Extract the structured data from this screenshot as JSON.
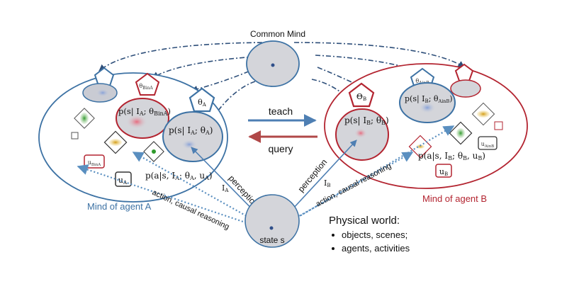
{
  "common_mind": {
    "title": "Common Mind"
  },
  "arrows": {
    "teach": "teach",
    "query": "query"
  },
  "agent_a": {
    "label": "Mind of agent A",
    "theta": "θ",
    "theta_sub": "A",
    "theta_bina": "θ",
    "theta_bina_sub": "BinA",
    "u": "u",
    "u_sub": "A",
    "u_bina": "u",
    "u_bina_sub": "BinA",
    "p_s_bina": "p(s| I",
    "p_s_bina_mid": "A",
    "p_s_bina_end": "; θ",
    "p_s_bina_sub": "BinA",
    "p_s": "p(s| I",
    "p_s_mid": "A",
    "p_s_end": "; θ",
    "p_s_sub": "A",
    "p_a": "p(a|s, I",
    "p_a_mid": "A",
    "p_a_end": "; θ",
    "p_a_sub": "A",
    "p_a_tail": ", u",
    "p_a_tail_sub": "A",
    "perception": "perception",
    "action": "action, causal reasoning",
    "I": "I",
    "I_sub": "A"
  },
  "agent_b": {
    "label": "Mind of agent B",
    "theta": "Θ",
    "theta_sub": "B",
    "theta_ainb": "θ",
    "theta_ainb_sub": "AinB",
    "u": "u",
    "u_sub": "B",
    "u_ainb": "u",
    "u_ainb_sub": "AinB",
    "p_s_ainb": "p(s| I",
    "p_s_ainb_mid": "B",
    "p_s_ainb_end": "; θ",
    "p_s_ainb_sub": "AinB",
    "p_s": "p(s| I",
    "p_s_mid": "B",
    "p_s_end": "; θ",
    "p_s_sub": "B",
    "p_a": "p(a|s, I",
    "p_a_mid": "B",
    "p_a_end": "; θ",
    "p_a_sub": "B",
    "p_a_tail": ", u",
    "p_a_tail_sub": "B",
    "perception": "perception",
    "action": "action, causal reasoning",
    "I": "I",
    "I_sub": "B"
  },
  "state": {
    "label": "state s"
  },
  "physical_world": {
    "title": "Physical world:",
    "items": [
      "objects, scenes;",
      "agents, activities"
    ]
  },
  "colors": {
    "blue": "#3d72a4",
    "red": "#b32430",
    "gray_fill": "#d4d5da",
    "dashed": "#2e4f7a",
    "teach_arrow": "#4e7fb3",
    "query_arrow": "#b04848"
  }
}
